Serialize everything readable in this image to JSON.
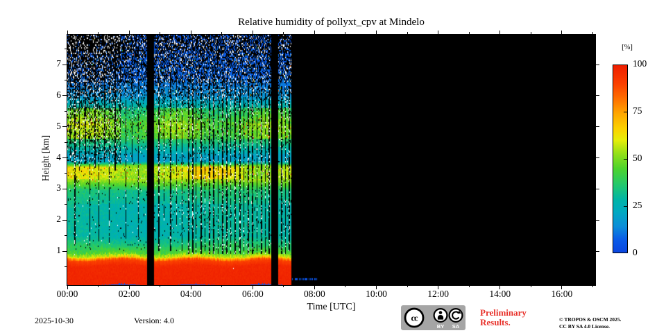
{
  "footer": {
    "date": "2025-10-30",
    "version": "Version: 4.0",
    "preliminary_line1": "Preliminary",
    "preliminary_line2": "Results.",
    "preliminary_color": "#e8312a",
    "copyright_line1": "© TROPOS & OSCM 2025.",
    "copyright_line2": "CC BY SA 4.0 License.",
    "cc_badge": {
      "cc": "cc",
      "by": "BY",
      "sa": "SA",
      "background": "#a5a5a5"
    }
  },
  "chart_data": {
    "type": "heatmap",
    "title": "Relative humidity of pollyxt_cpv at Mindelo",
    "xlabel": "Time [UTC]",
    "ylabel": "Height [km]",
    "colorbar_label": "[%]",
    "colorbar_ticks": [
      0,
      25,
      50,
      75,
      100
    ],
    "colorbar_range": [
      0,
      100
    ],
    "xlim_hours": [
      0,
      17.08
    ],
    "xticks": [
      {
        "hours": 0,
        "label": "00:00"
      },
      {
        "hours": 2,
        "label": "02:00"
      },
      {
        "hours": 4,
        "label": "04:00"
      },
      {
        "hours": 6,
        "label": "06:00"
      },
      {
        "hours": 8,
        "label": "08:00"
      },
      {
        "hours": 10,
        "label": "10:00"
      },
      {
        "hours": 12,
        "label": "12:00"
      },
      {
        "hours": 14,
        "label": "14:00"
      },
      {
        "hours": 16,
        "label": "16:00"
      }
    ],
    "x_minor_every_hours": 1,
    "ylim_km": [
      -0.09,
      7.96
    ],
    "yticks_km": [
      1,
      2,
      3,
      4,
      5,
      6,
      7
    ],
    "y_minor_every_km": 0.5,
    "no_data_color": "#000000",
    "colormap_stops": [
      [
        0.0,
        "#0b46e0"
      ],
      [
        0.07,
        "#0a5ce8"
      ],
      [
        0.14,
        "#0b8ed8"
      ],
      [
        0.22,
        "#00aac0"
      ],
      [
        0.28,
        "#00b4a8"
      ],
      [
        0.36,
        "#22c86e"
      ],
      [
        0.45,
        "#4ed42c"
      ],
      [
        0.53,
        "#96e018"
      ],
      [
        0.6,
        "#e6ee0a"
      ],
      [
        0.66,
        "#fcd200"
      ],
      [
        0.74,
        "#ffa800"
      ],
      [
        0.82,
        "#ff7000"
      ],
      [
        0.9,
        "#fb4000"
      ],
      [
        1.0,
        "#ee1e00"
      ]
    ],
    "data_time_range_hours": [
      0,
      7.25
    ],
    "gaps_hours": [
      [
        2.58,
        2.8
      ],
      [
        6.6,
        6.82
      ]
    ],
    "rh_profile_segments_h0_h1_v0_v1": [
      [
        -0.1,
        0.55,
        98,
        97
      ],
      [
        0.55,
        0.72,
        96,
        89
      ],
      [
        0.72,
        0.82,
        87,
        62
      ],
      [
        0.82,
        0.92,
        58,
        50
      ],
      [
        0.92,
        1.15,
        46,
        37
      ],
      [
        1.15,
        1.45,
        37,
        29
      ],
      [
        1.45,
        2.5,
        28,
        28
      ],
      [
        2.5,
        2.95,
        30,
        34
      ],
      [
        2.95,
        3.3,
        35,
        54
      ],
      [
        3.3,
        3.72,
        56,
        58
      ],
      [
        3.72,
        3.88,
        54,
        22
      ],
      [
        3.88,
        4.12,
        20,
        21
      ],
      [
        4.12,
        4.62,
        23,
        38
      ],
      [
        4.62,
        5.12,
        44,
        49
      ],
      [
        5.12,
        5.58,
        47,
        37
      ],
      [
        5.58,
        5.95,
        31,
        17
      ],
      [
        5.95,
        6.55,
        16,
        9
      ],
      [
        6.55,
        7.96,
        8,
        5
      ]
    ],
    "time_modulations": [
      {
        "h0": 3.3,
        "h1": 3.72,
        "amp": 5,
        "freq": 1.6,
        "phase": 1.0,
        "bt0": 4.1,
        "bt1": 5.7,
        "boost": 5
      },
      {
        "h0": 4.62,
        "h1": 5.58,
        "amp": 5,
        "freq": 2.1,
        "phase": 0.4,
        "bt0": 0.0,
        "bt1": 1.7,
        "boost": 5
      },
      {
        "h0": 1.15,
        "h1": 2.95,
        "amp": 2.0,
        "freq": 1.1,
        "phase": 2.0,
        "bt0": 0,
        "bt1": 0,
        "boost": 0
      }
    ],
    "noise": {
      "seed": 20251030,
      "sigma_base": 3.2,
      "sigma_band": 6,
      "band_ranges": [
        [
          3.3,
          3.72
        ],
        [
          4.62,
          5.58
        ],
        [
          0.82,
          0.95
        ]
      ],
      "black_prob_by_height": [
        [
          7.4,
          7.96,
          0.62
        ],
        [
          6.9,
          7.4,
          0.52
        ],
        [
          6.4,
          6.9,
          0.4
        ],
        [
          6.0,
          6.4,
          0.24
        ],
        [
          5.5,
          6.0,
          0.12
        ],
        [
          4.0,
          5.5,
          0.05
        ],
        [
          1.0,
          4.0,
          0.022
        ],
        [
          -0.1,
          1.0,
          0.0
        ]
      ],
      "white_prob_by_height": [
        [
          6.4,
          7.96,
          0.1
        ],
        [
          5.9,
          6.4,
          0.05
        ],
        [
          5.5,
          5.9,
          0.03
        ],
        [
          3.3,
          5.5,
          0.015
        ],
        [
          1.0,
          3.3,
          0.007
        ],
        [
          -0.1,
          1.0,
          0.001
        ]
      ],
      "early_extra": {
        "t_max": 1.7,
        "h_min": 3.8,
        "black_add": 0.16,
        "white_add": 0.05
      },
      "red_specks": {
        "prob": 0.012,
        "ranges": [
          [
            3.2,
            3.8
          ],
          [
            4.6,
            5.35
          ]
        ]
      },
      "high_specks": {
        "prob": 0.012,
        "h_min": 6.0
      }
    },
    "cloud_streaks_t_w_h0_h1": [
      [
        0.1,
        1,
        3.9,
        7.9
      ],
      [
        0.22,
        2,
        1.2,
        7.9
      ],
      [
        0.38,
        1,
        3.6,
        7.9
      ],
      [
        0.55,
        2,
        3.8,
        7.9
      ],
      [
        0.72,
        1,
        1.1,
        7.9
      ],
      [
        0.88,
        2,
        3.7,
        7.9
      ],
      [
        1.02,
        1,
        1.3,
        7.9
      ],
      [
        1.18,
        2,
        3.9,
        7.9
      ],
      [
        1.35,
        1,
        1.2,
        7.9
      ],
      [
        1.52,
        2,
        3.6,
        7.9
      ],
      [
        1.7,
        1,
        3.8,
        7.9
      ],
      [
        1.88,
        1,
        1.4,
        7.9
      ],
      [
        2.08,
        1,
        3.8,
        7.9
      ],
      [
        2.28,
        1,
        1.3,
        7.9
      ],
      [
        2.95,
        2,
        1.0,
        7.0
      ],
      [
        3.12,
        1,
        2.0,
        6.8
      ],
      [
        3.32,
        2,
        1.0,
        6.9
      ],
      [
        3.52,
        1,
        1.8,
        6.8
      ],
      [
        3.7,
        1,
        1.0,
        6.6
      ],
      [
        3.9,
        2,
        0.9,
        6.6
      ],
      [
        4.03,
        2,
        0.9,
        6.7
      ],
      [
        4.16,
        1,
        0.9,
        6.5
      ],
      [
        4.3,
        2,
        0.9,
        6.6
      ],
      [
        4.44,
        1,
        1.0,
        6.5
      ],
      [
        4.58,
        2,
        0.9,
        6.6
      ],
      [
        4.72,
        2,
        0.9,
        6.7
      ],
      [
        4.86,
        1,
        0.9,
        6.4
      ],
      [
        5.0,
        2,
        0.9,
        6.6
      ],
      [
        5.14,
        2,
        0.9,
        6.5
      ],
      [
        5.28,
        1,
        0.9,
        6.6
      ],
      [
        5.42,
        2,
        0.9,
        6.5
      ],
      [
        5.56,
        2,
        0.9,
        6.6
      ],
      [
        5.7,
        1,
        0.9,
        6.4
      ],
      [
        5.84,
        2,
        0.9,
        6.5
      ],
      [
        5.98,
        2,
        0.9,
        6.6
      ],
      [
        6.12,
        1,
        0.9,
        6.4
      ],
      [
        6.26,
        2,
        0.9,
        6.5
      ],
      [
        6.4,
        1,
        0.9,
        6.4
      ],
      [
        6.52,
        2,
        0.9,
        6.5
      ],
      [
        6.92,
        2,
        0.9,
        6.3
      ],
      [
        7.05,
        1,
        0.9,
        6.2
      ],
      [
        7.16,
        2,
        1.0,
        6.3
      ]
    ],
    "streak_pixel_probs": {
      "black": 0.78,
      "white": 0.14
    },
    "surface_layer_top_km": 0.76,
    "post_end_specks": {
      "t0": 7.28,
      "t1": 8.1,
      "h_max": 0.14,
      "prob": 0.5,
      "value": 4
    }
  }
}
